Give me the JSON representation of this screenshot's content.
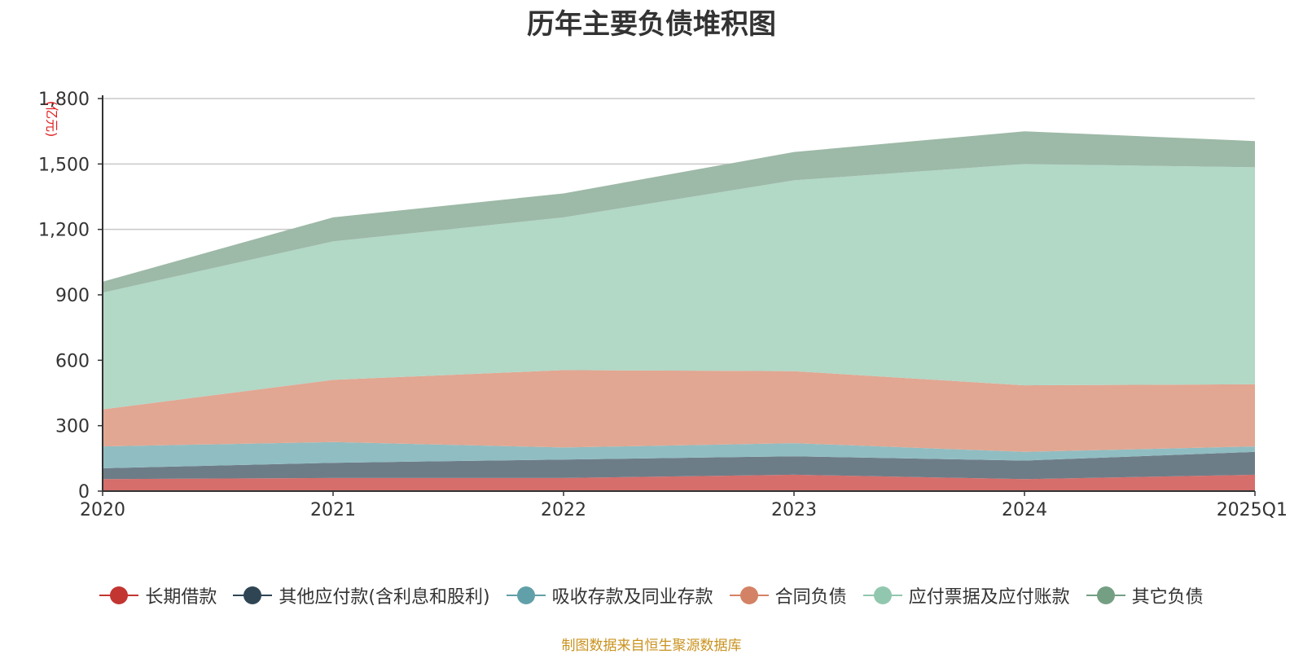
{
  "title": "历年主要负债堆积图",
  "source_note": "制图数据来自恒生聚源数据库",
  "chart_data": {
    "type": "area",
    "stacked": true,
    "title": "历年主要负债堆积图",
    "y_unit": "(亿元)",
    "categories": [
      "2020",
      "2021",
      "2022",
      "2023",
      "2024",
      "2025Q1"
    ],
    "ylim": [
      0,
      1800
    ],
    "yticks": [
      0,
      300,
      600,
      900,
      1200,
      1500,
      1800
    ],
    "ytick_labels": [
      "0",
      "300",
      "600",
      "900",
      "1,200",
      "1,500",
      "1,800"
    ],
    "grid": true,
    "legend_position": "bottom",
    "series": [
      {
        "name": "长期借款",
        "values": [
          55,
          60,
          60,
          75,
          55,
          75
        ],
        "color": "#c23531",
        "fill": "#d66e6b"
      },
      {
        "name": "其他应付款(含利息和股利)",
        "values": [
          50,
          70,
          85,
          85,
          85,
          105
        ],
        "color": "#2f4554",
        "fill": "#6d7d88"
      },
      {
        "name": "吸收存款及同业存款",
        "values": [
          100,
          95,
          55,
          60,
          40,
          25
        ],
        "color": "#61a0a8",
        "fill": "#90bdc2"
      },
      {
        "name": "合同负债",
        "values": [
          170,
          285,
          355,
          330,
          305,
          285
        ],
        "color": "#d48265",
        "fill": "#e1a792"
      },
      {
        "name": "应付票据及应付账款",
        "values": [
          535,
          635,
          700,
          875,
          1015,
          995
        ],
        "color": "#91c7ae",
        "fill": "#b2d8c6"
      },
      {
        "name": "其它负债",
        "values": [
          50,
          110,
          110,
          130,
          150,
          120
        ],
        "color": "#749f83",
        "fill": "#9db9a7"
      }
    ]
  }
}
